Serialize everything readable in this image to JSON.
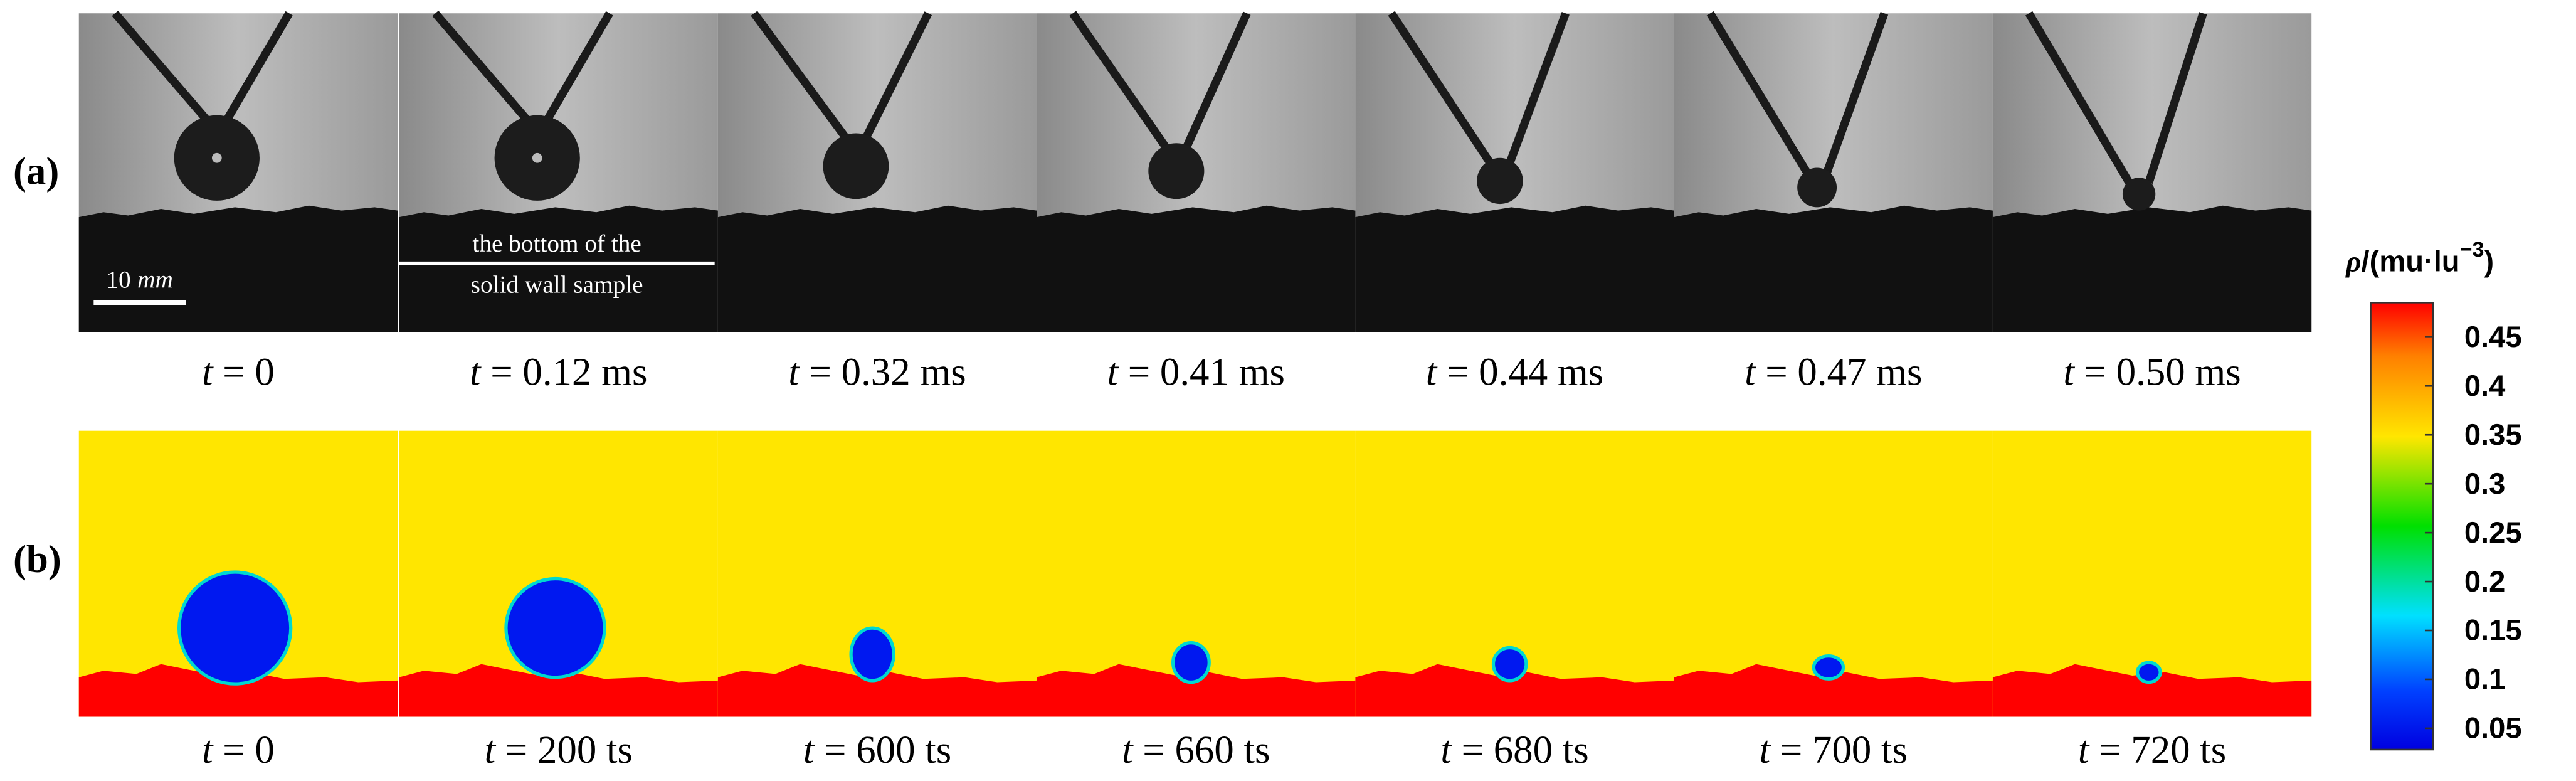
{
  "figure": {
    "panel_labels": [
      "(a)",
      "(b)"
    ],
    "experiment_times": [
      {
        "symbol": "t",
        "text": "= 0"
      },
      {
        "symbol": "t",
        "text": "= 0.12 ms"
      },
      {
        "symbol": "t",
        "text": "= 0.32 ms"
      },
      {
        "symbol": "t",
        "text": "= 0.41 ms"
      },
      {
        "symbol": "t",
        "text": "= 0.44 ms"
      },
      {
        "symbol": "t",
        "text": "= 0.47 ms"
      },
      {
        "symbol": "t",
        "text": "= 0.50 ms"
      }
    ],
    "simulation_times": [
      {
        "symbol": "t",
        "text": "= 0"
      },
      {
        "symbol": "t",
        "text": "= 200 ts"
      },
      {
        "symbol": "t",
        "text": "= 600 ts"
      },
      {
        "symbol": "t",
        "text": "= 660 ts"
      },
      {
        "symbol": "t",
        "text": "= 680 ts"
      },
      {
        "symbol": "t",
        "text": "= 700 ts"
      },
      {
        "symbol": "t",
        "text": "= 720 ts"
      }
    ],
    "scale_bar": {
      "value": "10",
      "unit": "mm"
    },
    "wall_note": [
      "the bottom of the",
      "solid wall sample"
    ],
    "colorbar": {
      "title": {
        "symbol": "ρ",
        "text": "/(mu·lu",
        "exponent": "−3",
        "close": ")"
      },
      "ticks": [
        "0.45",
        "0.4",
        "0.35",
        "0.3",
        "0.25",
        "0.2",
        "0.15",
        "0.1",
        "0.05"
      ]
    }
  }
}
